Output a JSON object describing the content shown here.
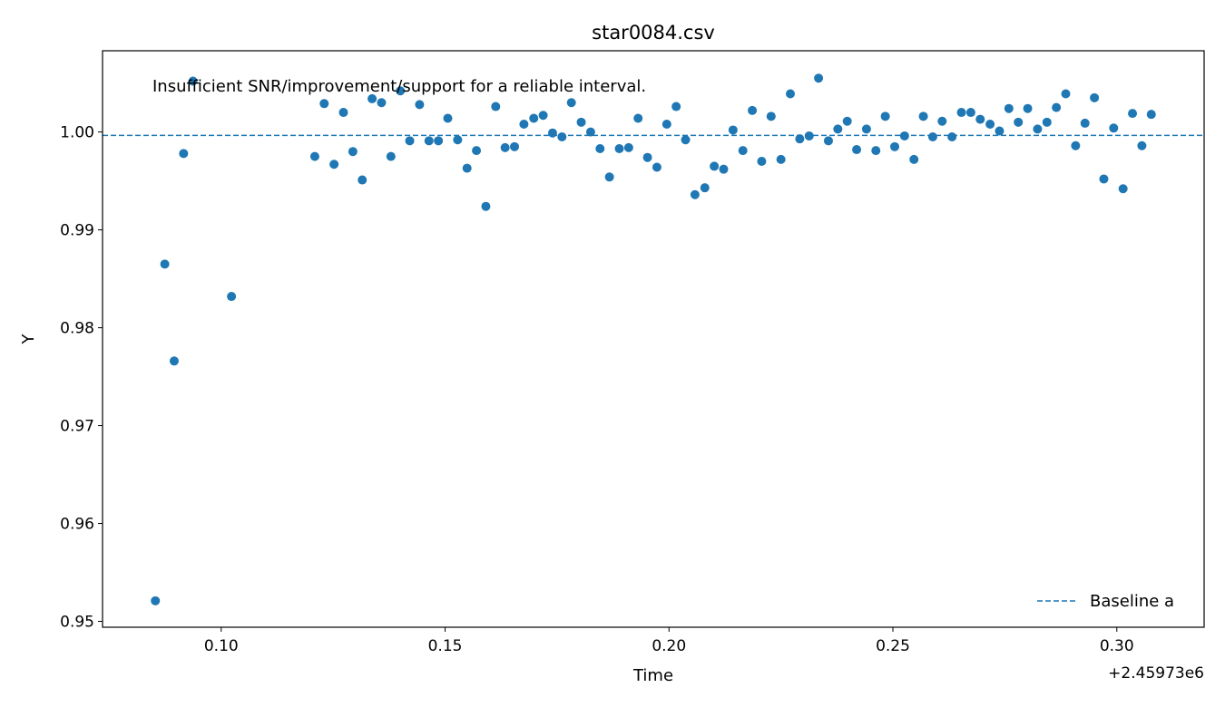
{
  "chart_data": {
    "type": "scatter",
    "title": "star0084.csv",
    "xlabel": "Time",
    "ylabel": "Y",
    "x_offset_label": "+2.45973e6",
    "xlim": [
      0.0735,
      0.3195
    ],
    "ylim": [
      0.9494,
      1.0083
    ],
    "x_ticks": [
      0.1,
      0.15,
      0.2,
      0.25,
      0.3
    ],
    "x_tick_labels": [
      "0.10",
      "0.15",
      "0.20",
      "0.25",
      "0.30"
    ],
    "y_ticks": [
      0.95,
      0.96,
      0.97,
      0.98,
      0.99,
      1.0
    ],
    "y_tick_labels": [
      "0.95",
      "0.96",
      "0.97",
      "0.98",
      "0.99",
      "1.00"
    ],
    "grid": false,
    "legend_position": "lower-right",
    "annotation": "Insufficient SNR/improvement/support for a reliable interval.",
    "colors": {
      "points": "#1f77b4",
      "baseline": "#1f77b4"
    },
    "baseline": {
      "name": "Baseline a",
      "y": 0.99965
    },
    "points": {
      "x": [
        0.0853,
        0.0874,
        0.0895,
        0.0916,
        0.0937,
        0.1023,
        0.1209,
        0.123,
        0.1252,
        0.1273,
        0.1294,
        0.1315,
        0.1337,
        0.1358,
        0.1379,
        0.14,
        0.1421,
        0.1443,
        0.1464,
        0.1485,
        0.1506,
        0.1528,
        0.1549,
        0.157,
        0.1591,
        0.1613,
        0.1634,
        0.1655,
        0.1676,
        0.1698,
        0.1719,
        0.174,
        0.1761,
        0.1782,
        0.1804,
        0.1825,
        0.1846,
        0.1867,
        0.1889,
        0.191,
        0.1931,
        0.1952,
        0.1973,
        0.1995,
        0.2016,
        0.2037,
        0.2058,
        0.208,
        0.2101,
        0.2122,
        0.2143,
        0.2165,
        0.2186,
        0.2207,
        0.2228,
        0.225,
        0.2271,
        0.2292,
        0.2313,
        0.2334,
        0.2356,
        0.2377,
        0.2398,
        0.2419,
        0.2441,
        0.2462,
        0.2483,
        0.2504,
        0.2526,
        0.2547,
        0.2568,
        0.2589,
        0.261,
        0.2632,
        0.2653,
        0.2674,
        0.2695,
        0.2717,
        0.2738,
        0.2759,
        0.278,
        0.2801,
        0.2823,
        0.2844,
        0.2865,
        0.2886,
        0.2908,
        0.2929,
        0.295,
        0.2971,
        0.2993,
        0.3014,
        0.3035,
        0.3056,
        0.3077
      ],
      "y": [
        0.9521,
        0.9865,
        0.9766,
        0.9978,
        1.0052,
        0.9832,
        0.9975,
        1.0029,
        0.9967,
        1.002,
        0.998,
        0.9951,
        1.0034,
        1.003,
        0.9975,
        1.0042,
        0.9991,
        1.0028,
        0.9991,
        0.9991,
        1.0014,
        0.9992,
        0.9963,
        0.9981,
        0.9924,
        1.0026,
        0.9984,
        0.9985,
        1.0008,
        1.0014,
        1.0017,
        0.9999,
        0.9995,
        1.003,
        1.001,
        1.0,
        0.9983,
        0.9954,
        0.9983,
        0.9984,
        1.0014,
        0.9974,
        0.9964,
        1.0008,
        1.0026,
        0.9992,
        0.9936,
        0.9943,
        0.9965,
        0.9962,
        1.0002,
        0.9981,
        1.0022,
        0.997,
        1.0016,
        0.9972,
        1.0039,
        0.9993,
        0.9996,
        1.0055,
        0.9991,
        1.0003,
        1.0011,
        0.9982,
        1.0003,
        0.9981,
        1.0016,
        0.9985,
        0.9996,
        0.9972,
        1.0016,
        0.9995,
        1.0011,
        0.9995,
        1.002,
        1.002,
        1.0013,
        1.0008,
        1.0001,
        1.0024,
        1.001,
        1.0024,
        1.0003,
        1.001,
        1.0025,
        1.0039,
        0.9986,
        1.0009,
        1.0035,
        0.9952,
        1.0004,
        0.9942,
        1.0019,
        0.9986,
        1.0018
      ]
    }
  }
}
